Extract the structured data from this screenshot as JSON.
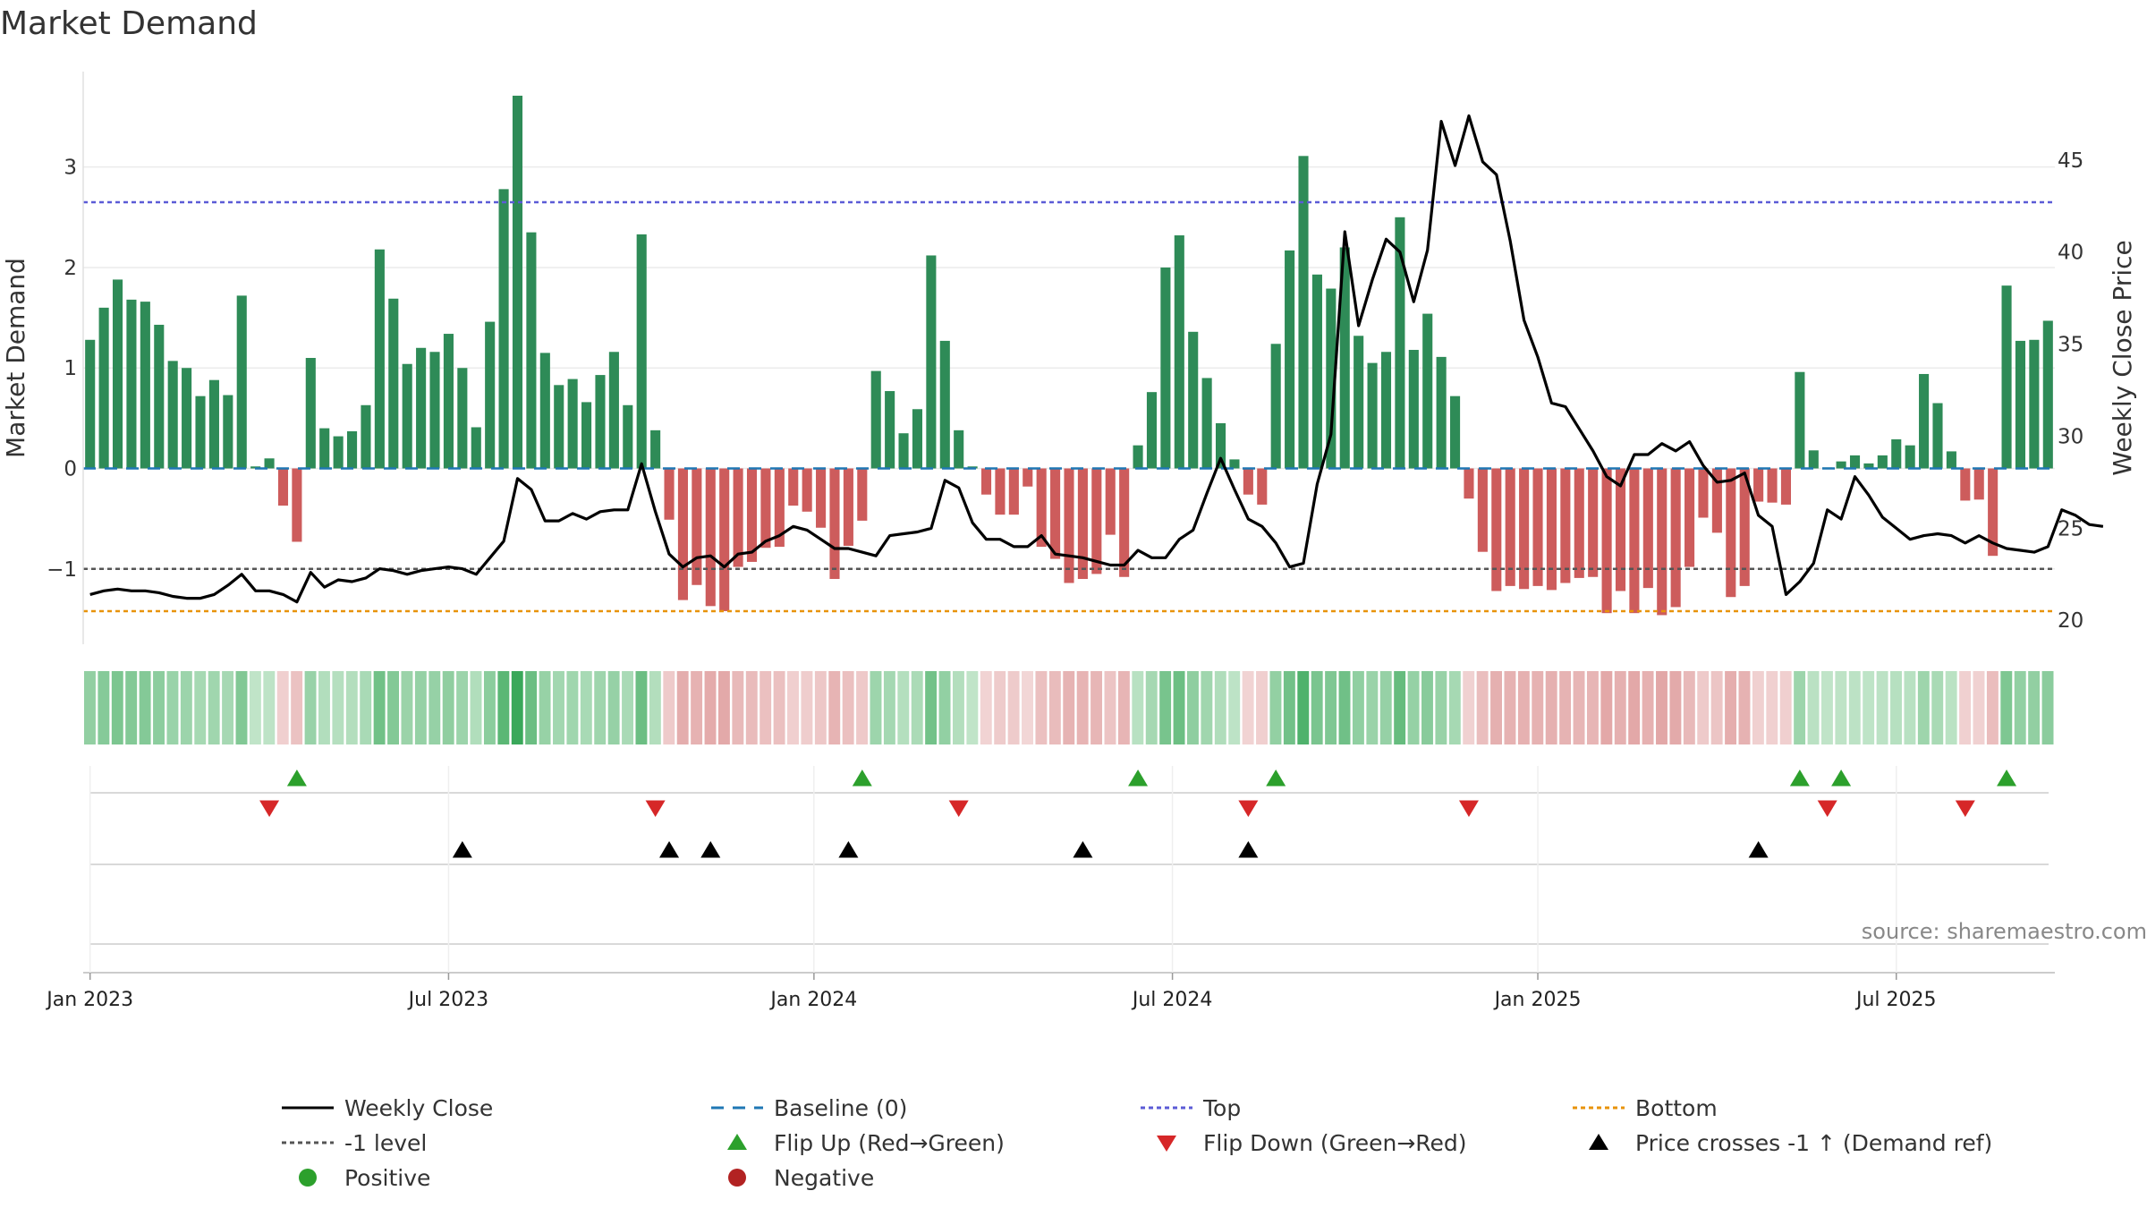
{
  "chart_data": {
    "type": "bar",
    "title": "Market Demand",
    "ylabel_left": "Market Demand",
    "ylabel_right": "Weekly Close Price",
    "source": "source: sharemaestro.com",
    "ylim_left": [
      -1.75,
      3.95
    ],
    "ylim_right": [
      18.7,
      49.8
    ],
    "yticks_left": [
      {
        "v": 3,
        "label": "3"
      },
      {
        "v": 2,
        "label": "2"
      },
      {
        "v": 1,
        "label": "1"
      },
      {
        "v": 0,
        "label": "0"
      },
      {
        "v": -1,
        "label": "−1"
      }
    ],
    "yticks_right": [
      {
        "v": 45,
        "label": "45"
      },
      {
        "v": 40,
        "label": "40"
      },
      {
        "v": 35,
        "label": "35"
      },
      {
        "v": 30,
        "label": "30"
      },
      {
        "v": 25,
        "label": "25"
      },
      {
        "v": 20,
        "label": "20"
      }
    ],
    "xticks": [
      {
        "week": 1,
        "label": "Jan 2023"
      },
      {
        "week": 27,
        "label": "Jul 2023"
      },
      {
        "week": 53.5,
        "label": "Jan 2024"
      },
      {
        "week": 79.5,
        "label": "Jul 2024"
      },
      {
        "week": 106,
        "label": "Jan 2025"
      },
      {
        "week": 132,
        "label": "Jul 2025"
      }
    ],
    "reference_lines": {
      "baseline": 0,
      "top": 2.65,
      "bottom": -1.42,
      "minus_one": -1
    },
    "demand": [
      1.28,
      1.6,
      1.88,
      1.68,
      1.66,
      1.43,
      1.07,
      1.0,
      0.72,
      0.88,
      0.73,
      1.72,
      0.02,
      0.1,
      -0.37,
      -0.73,
      1.1,
      0.4,
      0.32,
      0.37,
      0.63,
      2.18,
      1.69,
      1.04,
      1.2,
      1.16,
      1.34,
      1.0,
      0.41,
      1.46,
      2.78,
      3.71,
      2.35,
      1.15,
      0.83,
      0.89,
      0.66,
      0.93,
      1.16,
      0.63,
      2.33,
      0.38,
      -0.51,
      -1.31,
      -1.16,
      -1.37,
      -1.42,
      -0.98,
      -0.93,
      -0.79,
      -0.78,
      -0.37,
      -0.43,
      -0.59,
      -1.1,
      -0.77,
      -0.52,
      0.97,
      0.77,
      0.35,
      0.59,
      2.12,
      1.27,
      0.38,
      0.02,
      -0.26,
      -0.46,
      -0.46,
      -0.18,
      -0.78,
      -0.9,
      -1.14,
      -1.1,
      -1.05,
      -0.66,
      -1.08,
      0.23,
      0.76,
      2.0,
      2.32,
      1.36,
      0.9,
      0.45,
      0.09,
      -0.26,
      -0.36,
      1.24,
      2.17,
      3.11,
      1.93,
      1.79,
      2.2,
      1.32,
      1.05,
      1.16,
      2.5,
      1.18,
      1.54,
      1.11,
      0.72,
      -0.3,
      -0.83,
      -1.22,
      -1.17,
      -1.2,
      -1.17,
      -1.21,
      -1.14,
      -1.09,
      -1.08,
      -1.44,
      -1.22,
      -1.44,
      -1.19,
      -1.46,
      -1.38,
      -0.98,
      -0.49,
      -0.64,
      -1.28,
      -1.17,
      -0.33,
      -0.34,
      -0.36,
      0.96,
      0.18,
      0.01,
      0.07,
      0.13,
      0.05,
      0.13,
      0.29,
      0.23,
      0.94,
      0.65,
      0.17,
      -0.32,
      -0.31,
      -0.87,
      1.82,
      1.27,
      1.28,
      1.47
    ],
    "weekly_close": [
      21.4,
      21.6,
      21.7,
      21.6,
      21.6,
      21.5,
      21.3,
      21.2,
      21.2,
      21.4,
      21.9,
      22.5,
      21.6,
      21.6,
      21.4,
      21.0,
      22.6,
      21.8,
      22.2,
      22.1,
      22.3,
      22.8,
      22.7,
      22.5,
      22.7,
      22.8,
      22.9,
      22.8,
      22.5,
      23.4,
      24.3,
      27.7,
      27.1,
      25.4,
      25.4,
      25.8,
      25.5,
      25.9,
      26.0,
      26.0,
      28.5,
      25.9,
      23.6,
      22.9,
      23.4,
      23.5,
      22.9,
      23.6,
      23.7,
      24.3,
      24.6,
      25.1,
      24.9,
      24.4,
      23.9,
      23.9,
      23.7,
      23.5,
      24.6,
      24.7,
      24.8,
      25.0,
      27.6,
      27.2,
      25.3,
      24.4,
      24.4,
      24.0,
      24.0,
      24.6,
      23.6,
      23.5,
      23.4,
      23.2,
      23.0,
      23.0,
      23.8,
      23.4,
      23.4,
      24.4,
      24.9,
      26.9,
      28.8,
      27.1,
      25.5,
      25.1,
      24.2,
      22.9,
      23.1,
      27.4,
      30.1,
      41.1,
      36.0,
      38.5,
      40.7,
      40.0,
      37.3,
      40.1,
      47.1,
      44.7,
      47.4,
      44.9,
      44.2,
      40.6,
      36.3,
      34.3,
      31.8,
      31.6,
      30.4,
      29.2,
      27.8,
      27.3,
      29.0,
      29.0,
      29.6,
      29.2,
      29.7,
      28.4,
      27.5,
      27.6,
      28.0,
      25.7,
      25.1,
      21.4,
      22.1,
      23.1,
      26.0,
      25.5,
      27.8,
      26.8,
      25.6,
      25.0,
      24.4,
      24.6,
      24.7,
      24.6,
      24.2,
      24.6,
      24.2,
      23.9,
      23.8,
      23.7,
      24.0,
      26.0,
      25.7,
      25.2,
      25.1
    ],
    "flip_up_weeks": [
      16,
      57,
      77,
      87,
      125,
      128,
      140
    ],
    "flip_down_weeks": [
      14,
      42,
      64,
      85,
      101,
      127,
      137
    ],
    "price_cross_weeks": [
      28,
      43,
      46,
      56,
      73,
      85,
      122
    ],
    "legend": [
      {
        "label": "Weekly Close",
        "symbol": "line",
        "color": "#000000"
      },
      {
        "label": "Baseline (0)",
        "symbol": "dash",
        "color": "#1f77b4"
      },
      {
        "label": "Top",
        "symbol": "dot",
        "color": "#5b5bd6"
      },
      {
        "label": "Bottom",
        "symbol": "dot",
        "color": "#e8930a"
      },
      {
        "label": "-1 level",
        "symbol": "dot",
        "color": "#555555"
      },
      {
        "label": "Flip Up (Red→Green)",
        "symbol": "triangle-up",
        "color": "#2ca02c"
      },
      {
        "label": "Flip Down (Green→Red)",
        "symbol": "triangle-down",
        "color": "#d62728"
      },
      {
        "label": "Price crosses -1 ↑ (Demand ref)",
        "symbol": "triangle-up",
        "color": "#000000"
      },
      {
        "label": "Positive",
        "symbol": "circle",
        "color": "#2ca02c"
      },
      {
        "label": "Negative",
        "symbol": "circle",
        "color": "#b22222"
      }
    ],
    "colors": {
      "positive_bar": "#2e8b57",
      "negative_bar": "#cd5c5c",
      "flip_up": "#2ca02c",
      "flip_down": "#d62728",
      "price_cross": "#000000",
      "close_line": "#000000",
      "baseline": "#1f77b4",
      "top": "#5b5bd6",
      "bottom": "#e8930a",
      "minus_one": "#555555"
    }
  }
}
